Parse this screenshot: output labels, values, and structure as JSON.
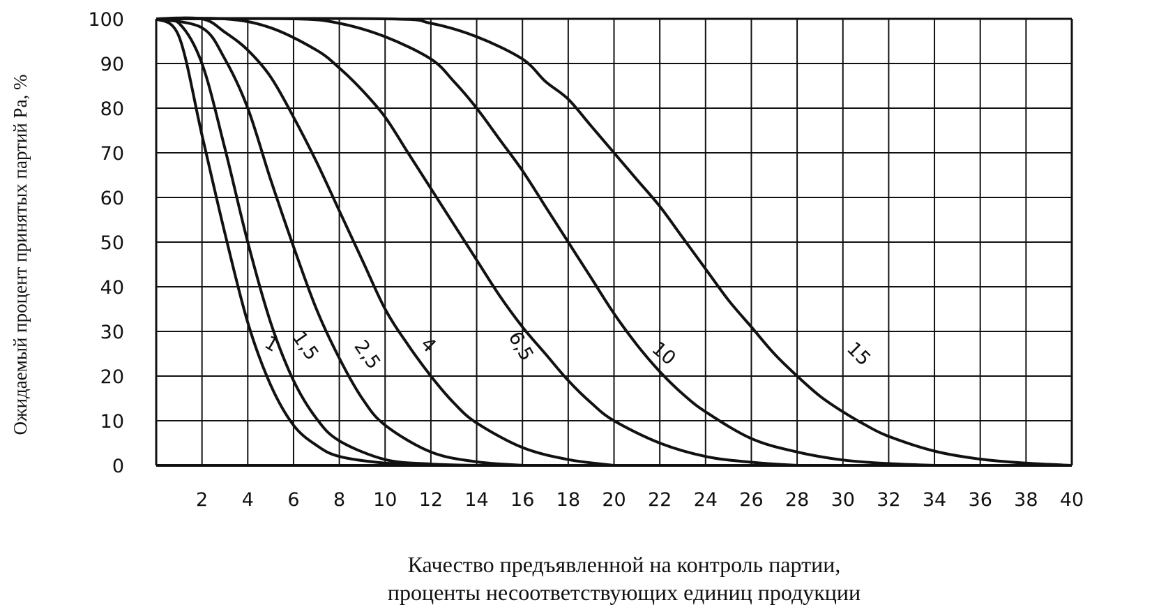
{
  "chart_data": {
    "type": "line",
    "title": "",
    "xlabel_lines": [
      "Качество предъявленной на контроль партии,",
      "проценты несоответствующих единиц продукции"
    ],
    "ylabel": "Ожидаемый процент принятых партий Pa, %",
    "xlim": [
      0,
      40
    ],
    "ylim": [
      0,
      100
    ],
    "grid": true,
    "x_ticks": [
      2,
      4,
      6,
      8,
      10,
      12,
      14,
      16,
      18,
      20,
      22,
      24,
      26,
      28,
      30,
      32,
      34,
      36,
      38,
      40
    ],
    "x_tick_labels": [
      "2",
      "4",
      "6",
      "8",
      "10",
      "12",
      "14",
      "16",
      "18",
      "20",
      "22",
      "24",
      "26",
      "28",
      "30",
      "32",
      "34",
      "36",
      "38",
      "40"
    ],
    "y_ticks": [
      0,
      10,
      20,
      30,
      40,
      50,
      60,
      70,
      80,
      90,
      100
    ],
    "y_tick_labels": [
      "0",
      "10",
      "20",
      "30",
      "40",
      "50",
      "60",
      "70",
      "80",
      "90",
      "100"
    ],
    "x_grid": [
      0,
      2,
      4,
      6,
      8,
      10,
      12,
      14,
      16,
      18,
      20,
      22,
      24,
      26,
      28,
      30,
      32,
      34,
      36,
      38,
      40
    ],
    "y_grid": [
      0,
      10,
      20,
      30,
      40,
      50,
      60,
      70,
      80,
      90,
      100
    ],
    "series": [
      {
        "name": "1",
        "label_at": [
          4.9,
          26
        ],
        "label_rotate": 30,
        "points": [
          [
            0,
            100
          ],
          [
            1,
            96
          ],
          [
            2,
            74
          ],
          [
            3,
            52
          ],
          [
            4,
            32
          ],
          [
            5,
            18
          ],
          [
            6,
            9
          ],
          [
            7,
            4.5
          ],
          [
            8,
            2
          ],
          [
            10,
            0.5
          ],
          [
            12,
            0
          ]
        ]
      },
      {
        "name": "1,5",
        "label_at": [
          6.3,
          26
        ],
        "label_rotate": 55,
        "points": [
          [
            0,
            100
          ],
          [
            1,
            99
          ],
          [
            2,
            90
          ],
          [
            3,
            71
          ],
          [
            4,
            50
          ],
          [
            5,
            32
          ],
          [
            6,
            19
          ],
          [
            7,
            10.5
          ],
          [
            8,
            5.5
          ],
          [
            10,
            1.3
          ],
          [
            12,
            0.3
          ],
          [
            14,
            0
          ]
        ]
      },
      {
        "name": "2,5",
        "label_at": [
          9.0,
          24
        ],
        "label_rotate": 55,
        "points": [
          [
            0,
            100
          ],
          [
            2,
            98
          ],
          [
            3,
            91
          ],
          [
            4,
            80
          ],
          [
            5,
            64
          ],
          [
            6,
            49
          ],
          [
            7,
            35
          ],
          [
            8,
            24
          ],
          [
            9,
            15
          ],
          [
            10,
            9
          ],
          [
            12,
            3
          ],
          [
            14,
            0.8
          ],
          [
            16,
            0
          ]
        ]
      },
      {
        "name": "4",
        "label_at": [
          11.7,
          26
        ],
        "label_rotate": 45,
        "points": [
          [
            0,
            100
          ],
          [
            2,
            100
          ],
          [
            3,
            97
          ],
          [
            4,
            93
          ],
          [
            5,
            87
          ],
          [
            6,
            78
          ],
          [
            7,
            68
          ],
          [
            8,
            57
          ],
          [
            9,
            46
          ],
          [
            10,
            35
          ],
          [
            11,
            27
          ],
          [
            12,
            20
          ],
          [
            13,
            14
          ],
          [
            14,
            9.5
          ],
          [
            16,
            4
          ],
          [
            18,
            1.3
          ],
          [
            20,
            0
          ]
        ]
      },
      {
        "name": "6,5",
        "label_at": [
          15.7,
          26
        ],
        "label_rotate": 60,
        "points": [
          [
            0,
            100
          ],
          [
            3,
            100
          ],
          [
            5,
            98
          ],
          [
            7,
            93
          ],
          [
            8,
            89
          ],
          [
            9,
            84
          ],
          [
            10,
            78
          ],
          [
            11,
            70
          ],
          [
            12,
            62
          ],
          [
            13,
            54
          ],
          [
            14,
            46
          ],
          [
            15,
            38
          ],
          [
            16,
            31
          ],
          [
            17,
            25
          ],
          [
            18,
            19
          ],
          [
            19,
            14
          ],
          [
            20,
            10
          ],
          [
            22,
            5
          ],
          [
            24,
            2
          ],
          [
            26,
            0.7
          ],
          [
            28,
            0
          ]
        ]
      },
      {
        "name": "10",
        "label_at": [
          22.0,
          24
        ],
        "label_rotate": 40,
        "points": [
          [
            0,
            100
          ],
          [
            6,
            100
          ],
          [
            8,
            99
          ],
          [
            10,
            96
          ],
          [
            12,
            91
          ],
          [
            13,
            86
          ],
          [
            14,
            80
          ],
          [
            15,
            73
          ],
          [
            16,
            66
          ],
          [
            17,
            58
          ],
          [
            18,
            50
          ],
          [
            19,
            42
          ],
          [
            20,
            34
          ],
          [
            21,
            27
          ],
          [
            22,
            21
          ],
          [
            23,
            16
          ],
          [
            24,
            12
          ],
          [
            26,
            6
          ],
          [
            28,
            3
          ],
          [
            30,
            1.2
          ],
          [
            32,
            0.4
          ],
          [
            34,
            0
          ]
        ]
      },
      {
        "name": "15",
        "label_at": [
          30.5,
          24
        ],
        "label_rotate": 45,
        "points": [
          [
            0,
            100
          ],
          [
            10,
            100
          ],
          [
            12,
            99
          ],
          [
            14,
            96
          ],
          [
            16,
            91
          ],
          [
            17,
            86
          ],
          [
            18,
            82
          ],
          [
            19,
            76
          ],
          [
            20,
            70
          ],
          [
            21,
            64
          ],
          [
            22,
            58
          ],
          [
            23,
            51
          ],
          [
            24,
            44
          ],
          [
            25,
            37
          ],
          [
            26,
            31
          ],
          [
            27,
            25
          ],
          [
            28,
            20
          ],
          [
            29,
            15.5
          ],
          [
            30,
            12
          ],
          [
            31,
            9
          ],
          [
            32,
            6.5
          ],
          [
            34,
            3.2
          ],
          [
            36,
            1.4
          ],
          [
            38,
            0.5
          ],
          [
            40,
            0
          ]
        ]
      }
    ]
  }
}
